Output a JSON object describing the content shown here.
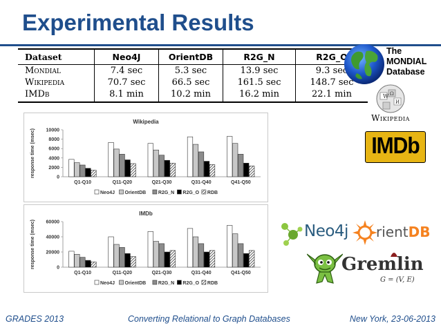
{
  "title": "Experimental Results",
  "table": {
    "headers": [
      "Dataset",
      "Neo4J",
      "OrientDB",
      "R2G_N",
      "R2G_O"
    ],
    "rows": [
      [
        "Mondial",
        "7.4 sec",
        "5.3 sec",
        "13.9 sec",
        "9.3 sec"
      ],
      [
        "Wikipedia",
        "70.7 sec",
        "66.5 sec",
        "161.5 sec",
        "148.7 sec"
      ],
      [
        "IMDb",
        "8.1 min",
        "10.2 min",
        "16.2 min",
        "22.1 min"
      ]
    ]
  },
  "logos": {
    "mondial": "The\nMONDIAL\nDatabase",
    "wikipedia": "Wikipedia",
    "imdb": "IMDb",
    "neo4j": "Neo4j",
    "orientdb_a": "rient",
    "orientdb_b": "DB",
    "gremlin": "Gremlin",
    "gremlin_formula": "G = (V, E)"
  },
  "chart_data": [
    {
      "type": "bar",
      "title": "Wikipedia",
      "ylabel": "response time (msec)",
      "xlabel": "",
      "categories": [
        "Q1-Q10",
        "Q11-Q20",
        "Q21-Q30",
        "Q31-Q40",
        "Q41-Q50"
      ],
      "ylim": [
        0,
        10000
      ],
      "yticks": [
        0,
        2000,
        4000,
        6000,
        8000,
        10000
      ],
      "ytick_labels": [
        "0",
        "2000",
        "4000",
        "6000",
        "8000",
        "10000"
      ],
      "legend_position": "bottom",
      "series": [
        {
          "name": "Neo4J",
          "values": [
            3700,
            7300,
            7100,
            8500,
            8600
          ]
        },
        {
          "name": "OrientDB",
          "values": [
            3000,
            5900,
            5700,
            6900,
            7100
          ]
        },
        {
          "name": "R2G_N",
          "values": [
            2500,
            4800,
            4600,
            5300,
            4800
          ]
        },
        {
          "name": "R2G_O",
          "values": [
            1800,
            3600,
            3500,
            3300,
            2900
          ]
        },
        {
          "name": "RDB",
          "values": [
            1400,
            2800,
            2900,
            2600,
            2300
          ]
        }
      ]
    },
    {
      "type": "bar",
      "title": "IMDb",
      "ylabel": "response time (msec)",
      "xlabel": "",
      "categories": [
        "Q1-Q10",
        "Q11-Q20",
        "Q21-Q30",
        "Q31-Q40",
        "Q41-Q50"
      ],
      "ylim": [
        0,
        60000
      ],
      "yticks": [
        0,
        20000,
        40000,
        60000
      ],
      "ytick_labels": [
        "0",
        "20000",
        "40000",
        "60000"
      ],
      "legend_position": "bottom",
      "series": [
        {
          "name": "Neo4J",
          "values": [
            21000,
            40000,
            47000,
            51000,
            55000
          ]
        },
        {
          "name": "OrientDB",
          "values": [
            17000,
            30000,
            34000,
            40000,
            44000
          ]
        },
        {
          "name": "R2G_N",
          "values": [
            13000,
            26000,
            31000,
            31000,
            31000
          ]
        },
        {
          "name": "R2G_O",
          "values": [
            9000,
            18000,
            20000,
            20000,
            18000
          ]
        },
        {
          "name": "RDB",
          "values": [
            7000,
            14000,
            22000,
            22000,
            22000
          ]
        }
      ]
    }
  ],
  "series_styles": [
    {
      "fill": "#ffffff",
      "pattern": "none"
    },
    {
      "fill": "#c8c8c8",
      "pattern": "none"
    },
    {
      "fill": "#8c8c8c",
      "pattern": "none"
    },
    {
      "fill": "#000000",
      "pattern": "none"
    },
    {
      "fill": "#ffffff",
      "pattern": "hatch"
    }
  ],
  "footer": {
    "left": "GRADES 2013",
    "center": "Converting Relational to Graph Databases",
    "right": "New York, 23-06-2013"
  },
  "colors": {
    "title": "#1f4e8c",
    "footer": "#1f4e8c",
    "imdb_bg": "#e7b514",
    "neo4j_text": "#2a5c7f",
    "orientdb_orange": "#f58220"
  }
}
